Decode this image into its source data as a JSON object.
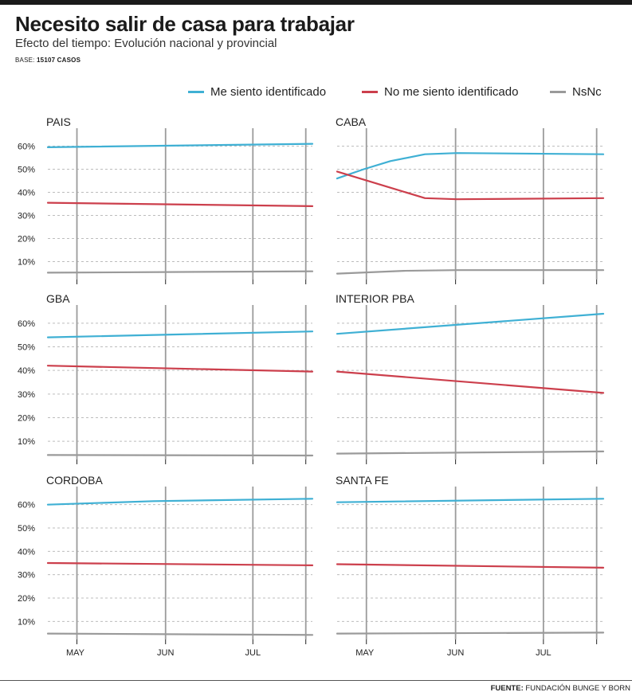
{
  "header": {
    "title": "Necesito salir de casa para trabajar",
    "subtitle": "Efecto del tiempo: Evolución nacional y provincial",
    "base_label": "BASE:",
    "base_value": "15107 CASOS"
  },
  "footer": {
    "source_label": "FUENTE:",
    "source_value": "FUNDACIÓN BUNGE Y BORN"
  },
  "colors": {
    "series": [
      "#3fb0d4",
      "#cc3f4c",
      "#9a9a9a"
    ],
    "grid": "#bdbdbd",
    "axis": "#222222"
  },
  "chart_data": [
    {
      "type": "line",
      "title": "PAIS",
      "x": [
        "MAY",
        "JUN",
        "JUL"
      ],
      "xlim": [
        0,
        1
      ],
      "ylim": [
        5,
        65
      ],
      "yticks": [
        "60%",
        "50%",
        "40%",
        "30%",
        "20%",
        "10%"
      ],
      "series": [
        {
          "name": "Me siento identificado",
          "points": [
            [
              0,
              59.5
            ],
            [
              1,
              61
            ]
          ]
        },
        {
          "name": "No me siento identificado",
          "points": [
            [
              0,
              35.5
            ],
            [
              1,
              34
            ]
          ]
        },
        {
          "name": "NsNc",
          "points": [
            [
              0,
              5.2
            ],
            [
              1,
              5.8
            ]
          ]
        }
      ]
    },
    {
      "type": "line",
      "title": "CABA",
      "x": [
        "MAY",
        "JUN",
        "JUL"
      ],
      "xlim": [
        0,
        1
      ],
      "ylim": [
        5,
        65
      ],
      "yticks": [],
      "series": [
        {
          "name": "Me siento identificado",
          "points": [
            [
              0,
              46
            ],
            [
              0.1,
              50
            ],
            [
              0.2,
              53.5
            ],
            [
              0.33,
              56.5
            ],
            [
              0.45,
              57
            ],
            [
              1,
              56.5
            ]
          ]
        },
        {
          "name": "No me siento identificado",
          "points": [
            [
              0,
              49
            ],
            [
              0.1,
              45.5
            ],
            [
              0.2,
              42
            ],
            [
              0.33,
              37.5
            ],
            [
              0.45,
              37
            ],
            [
              1,
              37.5
            ]
          ]
        },
        {
          "name": "NsNc",
          "points": [
            [
              0,
              4.8
            ],
            [
              0.25,
              6
            ],
            [
              0.45,
              6.3
            ],
            [
              1,
              6.3
            ]
          ]
        }
      ]
    },
    {
      "type": "line",
      "title": "GBA",
      "x": [
        "MAY",
        "JUN",
        "JUL"
      ],
      "xlim": [
        0,
        1
      ],
      "ylim": [
        5,
        65
      ],
      "yticks": [
        "60%",
        "50%",
        "40%",
        "30%",
        "20%",
        "10%"
      ],
      "series": [
        {
          "name": "Me siento identificado",
          "points": [
            [
              0,
              54
            ],
            [
              1,
              56.5
            ]
          ]
        },
        {
          "name": "No me siento identificado",
          "points": [
            [
              0,
              42
            ],
            [
              1,
              39.5
            ]
          ]
        },
        {
          "name": "NsNc",
          "points": [
            [
              0,
              4.2
            ],
            [
              1,
              4.0
            ]
          ]
        }
      ]
    },
    {
      "type": "line",
      "title": "INTERIOR PBA",
      "x": [
        "MAY",
        "JUN",
        "JUL"
      ],
      "xlim": [
        0,
        1
      ],
      "ylim": [
        5,
        65
      ],
      "yticks": [],
      "series": [
        {
          "name": "Me siento identificado",
          "points": [
            [
              0,
              55.5
            ],
            [
              1,
              64
            ]
          ]
        },
        {
          "name": "No me siento identificado",
          "points": [
            [
              0,
              39.5
            ],
            [
              1,
              30.5
            ]
          ]
        },
        {
          "name": "NsNc",
          "points": [
            [
              0,
              4.8
            ],
            [
              1,
              5.7
            ]
          ]
        }
      ]
    },
    {
      "type": "line",
      "title": "CORDOBA",
      "x": [
        "MAY",
        "JUN",
        "JUL"
      ],
      "xlim": [
        0,
        1
      ],
      "ylim": [
        5,
        65
      ],
      "yticks": [
        "60%",
        "50%",
        "40%",
        "30%",
        "20%",
        "10%"
      ],
      "series": [
        {
          "name": "Me siento identificado",
          "points": [
            [
              0,
              60
            ],
            [
              0.4,
              61.5
            ],
            [
              1,
              62.5
            ]
          ]
        },
        {
          "name": "No me siento identificado",
          "points": [
            [
              0,
              35
            ],
            [
              1,
              34
            ]
          ]
        },
        {
          "name": "NsNc",
          "points": [
            [
              0,
              4.8
            ],
            [
              1,
              4.2
            ]
          ]
        }
      ]
    },
    {
      "type": "line",
      "title": "SANTA FE",
      "x": [
        "MAY",
        "JUN",
        "JUL"
      ],
      "xlim": [
        0,
        1
      ],
      "ylim": [
        5,
        65
      ],
      "yticks": [],
      "series": [
        {
          "name": "Me siento identificado",
          "points": [
            [
              0,
              61
            ],
            [
              1,
              62.5
            ]
          ]
        },
        {
          "name": "No me siento identificado",
          "points": [
            [
              0,
              34.5
            ],
            [
              1,
              33
            ]
          ]
        },
        {
          "name": "NsNc",
          "points": [
            [
              0,
              4.8
            ],
            [
              1,
              5.2
            ]
          ]
        }
      ]
    }
  ]
}
